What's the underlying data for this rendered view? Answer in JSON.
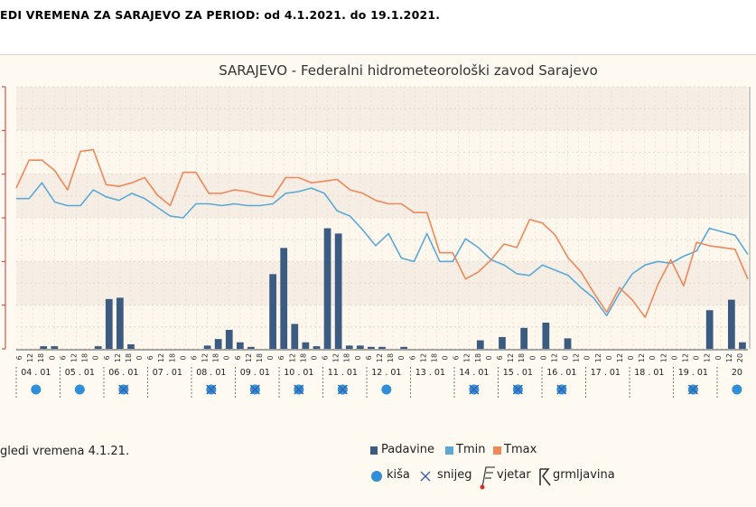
{
  "page": {
    "title": "EDI VREMENA ZA SARAJEVO ZA PERIOD: od 4.1.2021. do 19.1.2021.",
    "footer_note": "gledi vremena 4.1.21."
  },
  "legend": {
    "padavine": "Padavine",
    "tmin": "Tmin",
    "tmax": "Tmax",
    "kisa": "kiša",
    "snijeg": "snijeg",
    "vjetar": "vjetar",
    "grmljavina": "grmljavina"
  },
  "colors": {
    "tmax": "#f0885a",
    "tmin": "#5aa9d6",
    "bars": "#3b5b80",
    "rain_dot": "#2f8fd8",
    "snow_x": "#3b5fa8",
    "axis_red": "#d23030",
    "title": "#333333"
  },
  "chart_data": {
    "type": "line",
    "title": "SARAJEVO - Federalni hidrometeorološki zavod Sarajevo",
    "x_hour_ticks": [
      "6",
      "12",
      "18",
      "0",
      "6",
      "12",
      "18",
      "0",
      "6",
      "12",
      "18",
      "0",
      "6",
      "12",
      "18",
      "0",
      "6",
      "12",
      "18",
      "0",
      "6",
      "12",
      "18",
      "0",
      "6",
      "12",
      "18",
      "0",
      "6",
      "12",
      "18",
      "0",
      "6",
      "12",
      "18",
      "0",
      "6",
      "12",
      "18",
      "0",
      "6",
      "12",
      "18",
      "0",
      "6",
      "12",
      "18",
      "0",
      "0",
      "12",
      "0",
      "12",
      "0",
      "12",
      "0",
      "12",
      "0",
      "12",
      "0",
      "12",
      "0",
      "12",
      "0",
      "12",
      "0",
      "12",
      "20"
    ],
    "day_labels": [
      "04.01",
      "05.01",
      "06.01",
      "07.01",
      "08.01",
      "09.01",
      "10.01",
      "11.01",
      "12.01",
      "13.01",
      "14.01",
      "15.01",
      "16.01",
      "17.01",
      "18.01",
      "19.01",
      "20"
    ],
    "tmax": [
      8.2,
      9.8,
      9.8,
      9.2,
      8.1,
      10.3,
      10.4,
      8.4,
      8.3,
      8.5,
      8.8,
      7.8,
      7.2,
      9.1,
      9.1,
      7.9,
      7.9,
      8.1,
      8.0,
      7.8,
      7.7,
      8.8,
      8.8,
      8.5,
      8.6,
      8.7,
      8.1,
      7.9,
      7.5,
      7.3,
      7.3,
      6.8,
      6.8,
      4.5,
      4.5,
      3.0,
      3.4,
      4.1,
      5.0,
      4.8,
      6.4,
      6.2,
      5.5,
      4.2,
      3.4,
      2.2,
      1.1,
      2.5,
      1.8,
      0.8,
      2.7,
      4.1,
      2.6,
      5.1,
      4.9,
      4.8,
      4.7,
      3.0
    ],
    "tmin": [
      7.6,
      7.6,
      8.5,
      7.4,
      7.2,
      7.2,
      8.1,
      7.7,
      7.5,
      7.9,
      7.6,
      7.1,
      6.6,
      6.5,
      7.3,
      7.3,
      7.2,
      7.3,
      7.2,
      7.2,
      7.3,
      7.9,
      8.0,
      8.2,
      7.9,
      6.9,
      6.6,
      5.8,
      4.9,
      5.6,
      4.2,
      4.0,
      5.6,
      4.0,
      4.0,
      5.3,
      4.8,
      4.1,
      3.8,
      3.3,
      3.2,
      3.8,
      3.5,
      3.2,
      2.5,
      1.9,
      0.9,
      2.2,
      3.3,
      3.8,
      4.0,
      3.9,
      4.3,
      4.6,
      5.9,
      5.7,
      5.5,
      4.4
    ],
    "padavine": [
      0,
      0,
      0.4,
      0.4,
      0,
      0,
      0,
      0.4,
      7.6,
      7.8,
      0.7,
      0,
      0,
      0,
      0,
      0,
      0,
      0.5,
      1.5,
      2.9,
      1.0,
      0.3,
      0,
      11.4,
      15.4,
      3.8,
      1.0,
      0.4,
      18.4,
      17.6,
      0.5,
      0.5,
      0.3,
      0.3,
      0,
      0.3,
      0,
      0,
      0,
      0,
      0,
      0,
      1.3,
      0,
      1.8,
      0,
      3.2,
      0,
      4.0,
      0,
      1.6,
      0,
      0,
      0,
      0,
      0,
      0,
      0,
      0,
      0,
      0,
      0,
      0,
      5.9,
      0,
      7.5,
      1.0
    ],
    "tmax_range": [
      -1,
      14
    ],
    "padavine_range": [
      0,
      40
    ],
    "weather_markers": [
      {
        "day": "04.01",
        "type": "kiša"
      },
      {
        "day": "05.01",
        "type": "kiša"
      },
      {
        "day": "06.01",
        "type": "snijeg"
      },
      {
        "day": "08.01",
        "type": "snijeg"
      },
      {
        "day": "09.01",
        "type": "snijeg"
      },
      {
        "day": "10.01",
        "type": "snijeg"
      },
      {
        "day": "11.01",
        "type": "snijeg"
      },
      {
        "day": "12.01",
        "type": "kiša"
      },
      {
        "day": "14.01",
        "type": "snijeg"
      },
      {
        "day": "15.01",
        "type": "snijeg"
      },
      {
        "day": "16.01",
        "type": "snijeg"
      },
      {
        "day": "19.01",
        "type": "snijeg"
      },
      {
        "day": "20",
        "type": "kiša"
      }
    ]
  }
}
